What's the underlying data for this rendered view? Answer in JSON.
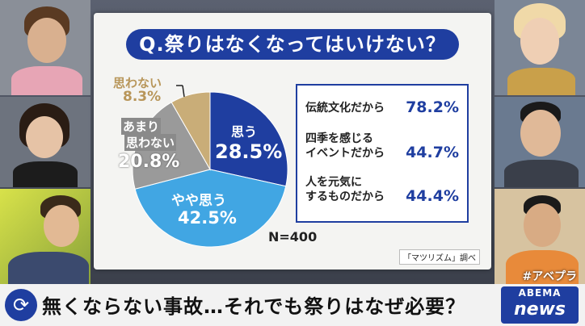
{
  "question": "Q.祭りはなくなってはいけない？",
  "chart_data": {
    "type": "pie",
    "title": "Q.祭りはなくなってはいけない？",
    "slices": [
      {
        "label": "思う",
        "value": 28.5,
        "color": "#1f3ea0"
      },
      {
        "label": "やや思う",
        "value": 42.5,
        "color": "#41a6e3"
      },
      {
        "label": "あまり思わない",
        "value": 20.8,
        "color": "#9a9a9a"
      },
      {
        "label": "思わない",
        "value": 8.3,
        "color": "#c9ad78"
      }
    ],
    "sample": "N=400"
  },
  "slice_labels": {
    "omou": {
      "name": "思う",
      "value": "28.5%"
    },
    "yaya": {
      "name": "やや思う",
      "value": "42.5%"
    },
    "amari": {
      "name1": "あまり",
      "name2": "思わない",
      "value": "20.8%"
    },
    "omowanai": {
      "name": "思わない",
      "value": "8.3%"
    }
  },
  "reasons": [
    {
      "line1": "伝統文化だから",
      "line2": "",
      "value": "78.2%"
    },
    {
      "line1": "四季を感じる",
      "line2": "イベントだから",
      "value": "44.7%"
    },
    {
      "line1": "人を元気に",
      "line2": "するものだから",
      "value": "44.4%"
    }
  ],
  "source": "「マツリズム」調べ",
  "ticker": "無くならない事故…それでも祭りはなぜ必要？",
  "logo": {
    "top": "ABEMA",
    "bottom": "news"
  },
  "hashtag": "#アベプラ"
}
